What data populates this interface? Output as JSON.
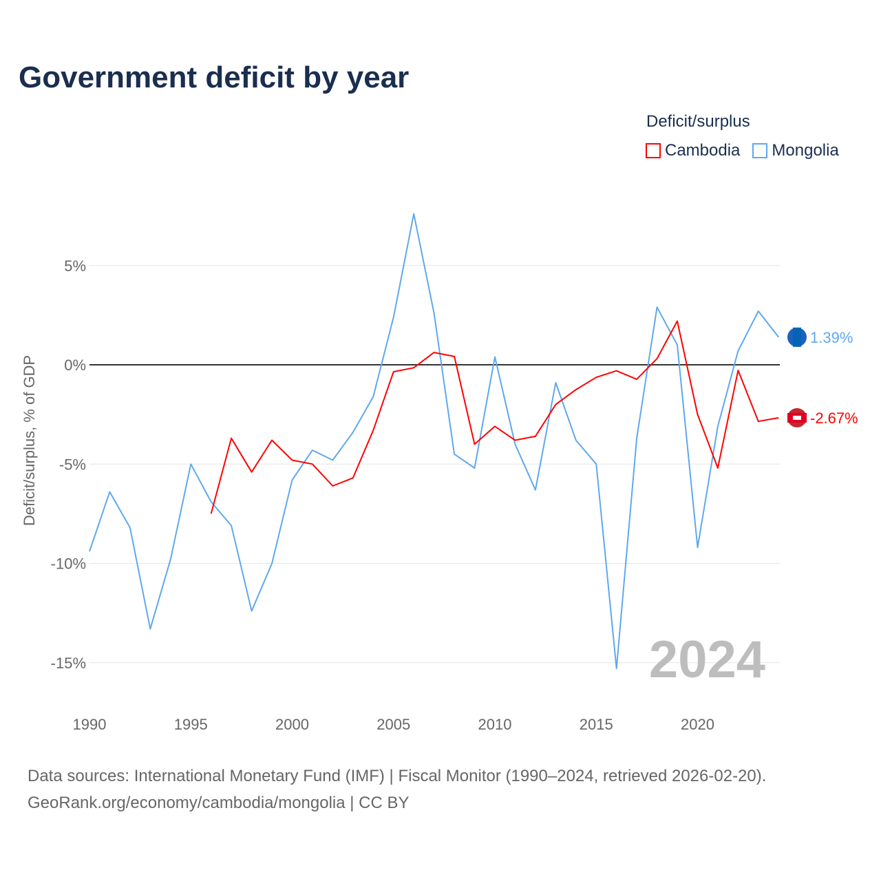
{
  "title": "Government deficit by year",
  "legend": {
    "title": "Deficit/surplus",
    "items": [
      {
        "name": "Cambodia",
        "color": "#ff0000"
      },
      {
        "name": "Mongolia",
        "color": "#5ea8ee"
      }
    ]
  },
  "watermark_year": "2024",
  "source_line1": "Data sources: International Monetary Fund (IMF) | Fiscal Monitor (1990–2024, retrieved 2026-02-20).",
  "source_line2": "GeoRank.org/economy/cambodia/mongolia | CC BY",
  "chart_data": {
    "type": "line",
    "title": "Government deficit by year",
    "ylabel": "Deficit/surplus, % of GDP",
    "xlabel": "",
    "xlim": [
      1990,
      2024
    ],
    "ylim": [
      -17,
      10
    ],
    "yticks": [
      {
        "v": 5,
        "label": "5%"
      },
      {
        "v": 0,
        "label": "0%"
      },
      {
        "v": -5,
        "label": "-5%"
      },
      {
        "v": -10,
        "label": "-10%"
      },
      {
        "v": -15,
        "label": "-15%"
      }
    ],
    "xticks": [
      {
        "v": 1990,
        "label": "1990"
      },
      {
        "v": 1995,
        "label": "1995"
      },
      {
        "v": 2000,
        "label": "2000"
      },
      {
        "v": 2005,
        "label": "2005"
      },
      {
        "v": 2010,
        "label": "2010"
      },
      {
        "v": 2015,
        "label": "2015"
      },
      {
        "v": 2020,
        "label": "2020"
      }
    ],
    "series": [
      {
        "name": "Mongolia",
        "color": "#5ea8ee",
        "end_label": "1.39%",
        "start": 1990,
        "values": [
          -9.4,
          -6.4,
          -8.2,
          -13.3,
          -9.8,
          -5.0,
          -6.9,
          -8.1,
          -12.4,
          -10.0,
          -5.8,
          -4.3,
          -4.8,
          -3.4,
          -1.6,
          2.4,
          7.6,
          2.6,
          -4.5,
          -5.2,
          0.4,
          -4.0,
          -6.3,
          -0.9,
          -3.8,
          -5.0,
          -15.3,
          -3.7,
          2.9,
          1.0,
          -9.2,
          -3.1,
          0.7,
          2.7,
          1.39
        ]
      },
      {
        "name": "Cambodia",
        "color": "#ff0000",
        "end_label": "-2.67%",
        "start": 1996,
        "values": [
          -7.5,
          -3.7,
          -5.4,
          -3.8,
          -4.8,
          -5.0,
          -6.1,
          -5.7,
          -3.3,
          -0.35,
          -0.15,
          0.62,
          0.42,
          -4.0,
          -3.1,
          -3.8,
          -3.6,
          -2.0,
          -1.25,
          -0.63,
          -0.3,
          -0.73,
          0.31,
          2.2,
          -2.5,
          -5.2,
          -0.28,
          -2.85,
          -2.67
        ]
      }
    ]
  }
}
